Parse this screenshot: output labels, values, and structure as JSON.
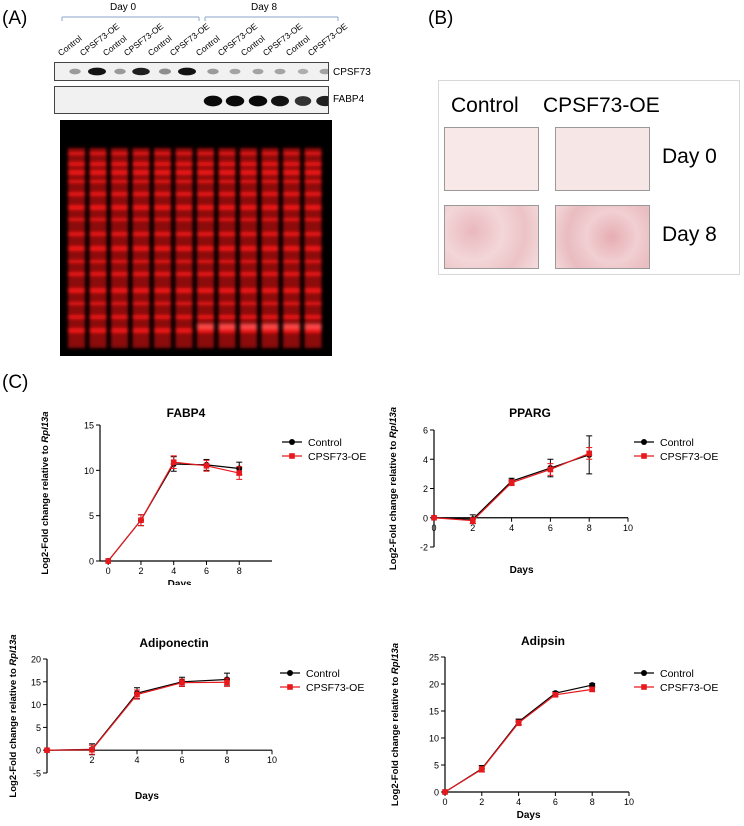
{
  "panelA": {
    "label": "(A)",
    "groups": [
      "Day 0",
      "Day 8"
    ],
    "lanes": [
      "Control",
      "CPSF73-OE",
      "Control",
      "CPSF73-OE",
      "Control",
      "CPSF73-OE",
      "Control",
      "CPSF73-OE",
      "Control",
      "CPSF73-OE",
      "Control",
      "CPSF73-OE"
    ],
    "blots": [
      {
        "name": "CPSF73",
        "band_intensity": [
          0.25,
          0.9,
          0.25,
          0.85,
          0.3,
          0.9,
          0.25,
          0.2,
          0.2,
          0.2,
          0.15,
          0.2
        ]
      },
      {
        "name": "FABP4",
        "band_intensity": [
          0,
          0,
          0,
          0,
          0,
          0,
          0.95,
          0.95,
          0.95,
          0.9,
          0.75,
          0.85
        ]
      }
    ],
    "gel_color": "#ff1a1a"
  },
  "panelB": {
    "label": "(B)",
    "columns": [
      "Control",
      "CPSF73-OE"
    ],
    "rows": [
      "Day 0",
      "Day 8"
    ]
  },
  "panelC": {
    "label": "(C)",
    "legend": [
      "Control",
      "CPSF73-OE"
    ],
    "colors": {
      "control": "#000000",
      "oe": "#e8191d"
    }
  },
  "chart_data": [
    {
      "type": "line",
      "title": "FABP4",
      "xlabel": "Days",
      "ylabel": "Log2-Fold change relative to Rpl13a",
      "xlim": [
        -0.5,
        10
      ],
      "ylim": [
        0,
        15
      ],
      "xticks": [
        0,
        2,
        4,
        6,
        8
      ],
      "yticks": [
        0,
        5,
        10,
        15
      ],
      "x": [
        0,
        2,
        4,
        6,
        8
      ],
      "series": [
        {
          "name": "Control",
          "values": [
            0,
            4.5,
            10.7,
            10.6,
            10.2
          ],
          "errors": [
            0,
            0.6,
            0.8,
            0.6,
            0.7
          ]
        },
        {
          "name": "CPSF73-OE",
          "values": [
            0,
            4.5,
            10.9,
            10.5,
            9.7
          ],
          "errors": [
            0,
            0.6,
            0.7,
            0.6,
            0.7
          ]
        }
      ]
    },
    {
      "type": "line",
      "title": "PPARG",
      "xlabel": "Days",
      "ylabel": "Log2-Fold change relative to Rpl13a",
      "xlim": [
        0,
        10
      ],
      "ylim": [
        -2,
        6
      ],
      "xticks": [
        0,
        2,
        4,
        6,
        8,
        10
      ],
      "yticks": [
        -2,
        0,
        2,
        4,
        6
      ],
      "x": [
        0,
        2,
        4,
        6,
        8
      ],
      "series": [
        {
          "name": "Control",
          "values": [
            0,
            -0.1,
            2.5,
            3.4,
            4.3
          ],
          "errors": [
            0,
            0.3,
            0.2,
            0.6,
            1.3
          ]
        },
        {
          "name": "CPSF73-OE",
          "values": [
            0,
            -0.2,
            2.4,
            3.3,
            4.4
          ],
          "errors": [
            0,
            0.2,
            0.2,
            0.4,
            0.4
          ]
        }
      ]
    },
    {
      "type": "line",
      "title": "Adiponectin",
      "xlabel": "Days",
      "ylabel": "Log2-Fold change relative to Rpl13a",
      "xlim": [
        0,
        10
      ],
      "ylim": [
        -5,
        20
      ],
      "xticks": [
        2,
        4,
        6,
        8,
        10
      ],
      "yticks": [
        -5,
        0,
        5,
        10,
        15,
        20
      ],
      "x": [
        0,
        2,
        4,
        6,
        8
      ],
      "series": [
        {
          "name": "Control",
          "values": [
            0,
            0.2,
            12.5,
            15.0,
            15.5
          ],
          "errors": [
            0,
            1.2,
            1.2,
            1.0,
            1.4
          ]
        },
        {
          "name": "CPSF73-OE",
          "values": [
            0,
            0.1,
            12.2,
            14.8,
            14.9
          ],
          "errors": [
            0,
            1.0,
            1.0,
            0.8,
            0.9
          ]
        }
      ]
    },
    {
      "type": "line",
      "title": "Adipsin",
      "xlabel": "Days",
      "ylabel": "Log2-Fold change relative to Rpl13a",
      "xlim": [
        0,
        10
      ],
      "ylim": [
        0,
        25
      ],
      "xticks": [
        0,
        2,
        4,
        6,
        8,
        10
      ],
      "yticks": [
        0,
        5,
        10,
        15,
        20,
        25
      ],
      "x": [
        0,
        2,
        4,
        6,
        8
      ],
      "series": [
        {
          "name": "Control",
          "values": [
            0,
            4.3,
            13.0,
            18.3,
            19.8
          ],
          "errors": [
            0,
            0.6,
            0.5,
            0.3,
            0.3
          ]
        },
        {
          "name": "CPSF73-OE",
          "values": [
            0,
            4.2,
            12.8,
            18.0,
            19.0
          ],
          "errors": [
            0,
            0.5,
            0.5,
            0.3,
            0.4
          ]
        }
      ]
    }
  ]
}
